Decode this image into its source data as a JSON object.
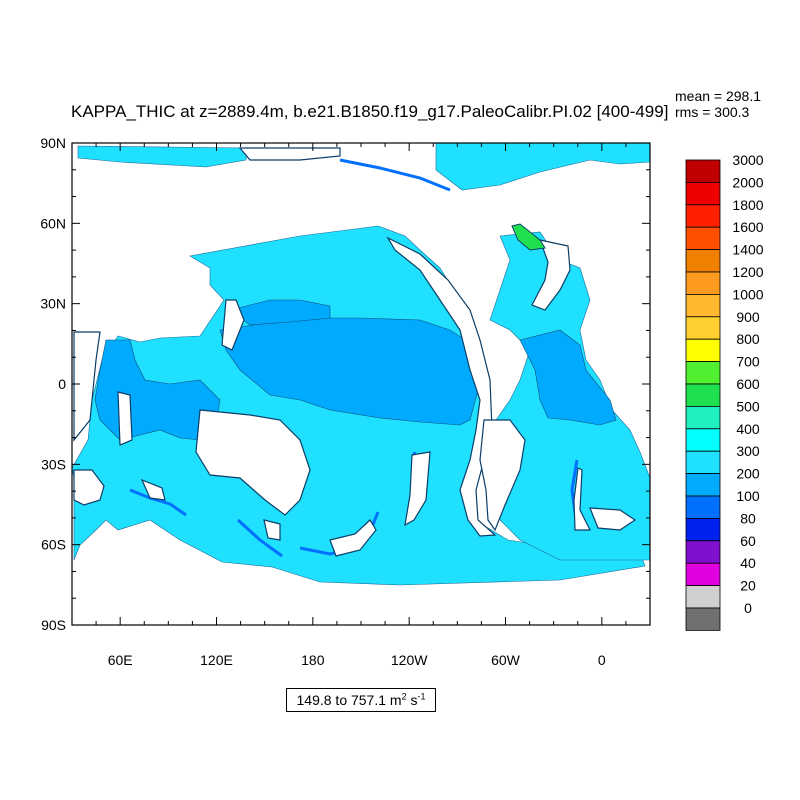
{
  "title": "KAPPA_THIC at z=2889.4m, b.e21.B1850.f19_g17.PaleoCalibr.PI.02 [400-499]",
  "stats": {
    "mean": "mean = 298.1",
    "rms": "rms = 300.3"
  },
  "range_label": {
    "prefix": "149.8 to 757.1 m",
    "exp1": "2",
    "mid": " s",
    "exp2": "-1"
  },
  "map": {
    "projection": "cylindrical equidistant",
    "lon_range": [
      30,
      390
    ],
    "lat_range": [
      -90,
      90
    ],
    "lat_ticks": [
      "90N",
      "60N",
      "30N",
      "0",
      "30S",
      "60S",
      "90S"
    ],
    "lon_ticks": [
      "60E",
      "120E",
      "180",
      "120W",
      "60W",
      "0"
    ]
  },
  "colorbar": {
    "labels": [
      "3000",
      "2000",
      "1800",
      "1600",
      "1400",
      "1200",
      "1000",
      "900",
      "800",
      "700",
      "600",
      "500",
      "400",
      "300",
      "200",
      "100",
      "80",
      "60",
      "40",
      "20",
      "0"
    ],
    "colors": [
      "#c00000",
      "#ee0000",
      "#ff2000",
      "#ff5000",
      "#f08000",
      "#ff9a20",
      "#ffb830",
      "#ffd030",
      "#ffff00",
      "#50f030",
      "#20e050",
      "#20f0c0",
      "#00ffff",
      "#20e0ff",
      "#00aaff",
      "#0070ff",
      "#0020f0",
      "#8010d0",
      "#e000e0",
      "#d0d0d0",
      "#707070"
    ]
  },
  "field_colors": {
    "band_300_400": "#20e0ff",
    "band_200_300": "#00aaff",
    "band_100_200": "#0070ff",
    "band_500_600": "#20e050",
    "land": "#ffffff"
  }
}
